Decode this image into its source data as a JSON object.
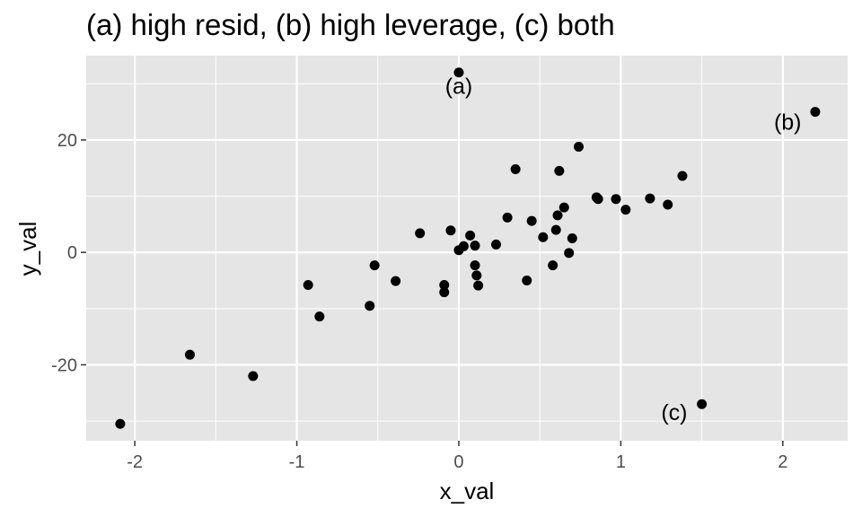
{
  "chart_data": {
    "type": "scatter",
    "title": "(a) high resid, (b) high leverage, (c) both",
    "xlabel": "x_val",
    "ylabel": "y_val",
    "xlim": [
      -2.3,
      2.4
    ],
    "ylim": [
      -33.5,
      35
    ],
    "x_ticks": [
      -2,
      -1,
      0,
      1,
      2
    ],
    "y_ticks": [
      -20,
      0,
      20
    ],
    "x_tick_labels": [
      "-2",
      "-1",
      "0",
      "1",
      "2"
    ],
    "y_tick_labels": [
      "-20",
      "0",
      "20"
    ],
    "grid": true,
    "colors": {
      "panel": "#e5e5e5",
      "grid": "#ffffff",
      "point": "#000000",
      "tick": "#4d4d4d"
    },
    "points": [
      {
        "x": -2.09,
        "y": -30.5
      },
      {
        "x": -1.66,
        "y": -18.2
      },
      {
        "x": -1.27,
        "y": -22.0
      },
      {
        "x": -0.93,
        "y": -5.8
      },
      {
        "x": -0.86,
        "y": -11.4
      },
      {
        "x": -0.55,
        "y": -9.5
      },
      {
        "x": -0.52,
        "y": -2.3
      },
      {
        "x": -0.39,
        "y": -5.1
      },
      {
        "x": -0.24,
        "y": 3.4
      },
      {
        "x": -0.09,
        "y": -5.8
      },
      {
        "x": -0.09,
        "y": -7.1
      },
      {
        "x": -0.05,
        "y": 3.9
      },
      {
        "x": 0.0,
        "y": 0.4
      },
      {
        "x": 0.03,
        "y": 1.1
      },
      {
        "x": 0.07,
        "y": 3.0
      },
      {
        "x": 0.1,
        "y": 1.2
      },
      {
        "x": 0.1,
        "y": -2.3
      },
      {
        "x": 0.11,
        "y": -4.1
      },
      {
        "x": 0.12,
        "y": -5.9
      },
      {
        "x": 0.23,
        "y": 1.4
      },
      {
        "x": 0.3,
        "y": 6.2
      },
      {
        "x": 0.35,
        "y": 14.8
      },
      {
        "x": 0.42,
        "y": -5.0
      },
      {
        "x": 0.45,
        "y": 5.6
      },
      {
        "x": 0.52,
        "y": 2.7
      },
      {
        "x": 0.58,
        "y": -2.3
      },
      {
        "x": 0.6,
        "y": 4.0
      },
      {
        "x": 0.61,
        "y": 6.6
      },
      {
        "x": 0.62,
        "y": 14.5
      },
      {
        "x": 0.65,
        "y": 8.0
      },
      {
        "x": 0.68,
        "y": -0.1
      },
      {
        "x": 0.7,
        "y": 2.5
      },
      {
        "x": 0.74,
        "y": 18.8
      },
      {
        "x": 0.85,
        "y": 9.8
      },
      {
        "x": 0.86,
        "y": 9.5
      },
      {
        "x": 0.97,
        "y": 9.5
      },
      {
        "x": 1.03,
        "y": 7.6
      },
      {
        "x": 1.18,
        "y": 9.6
      },
      {
        "x": 1.29,
        "y": 8.5
      },
      {
        "x": 1.38,
        "y": 13.6
      },
      {
        "x": 0.0,
        "y": 32.0
      },
      {
        "x": 2.2,
        "y": 25.0
      },
      {
        "x": 1.5,
        "y": -27.0
      }
    ],
    "annotations": [
      {
        "text": "(a)",
        "x": 0.0,
        "y": 28.2
      },
      {
        "text": "(b)",
        "x": 2.03,
        "y": 21.8
      },
      {
        "text": "(c)",
        "x": 1.33,
        "y": -29.8
      }
    ]
  }
}
